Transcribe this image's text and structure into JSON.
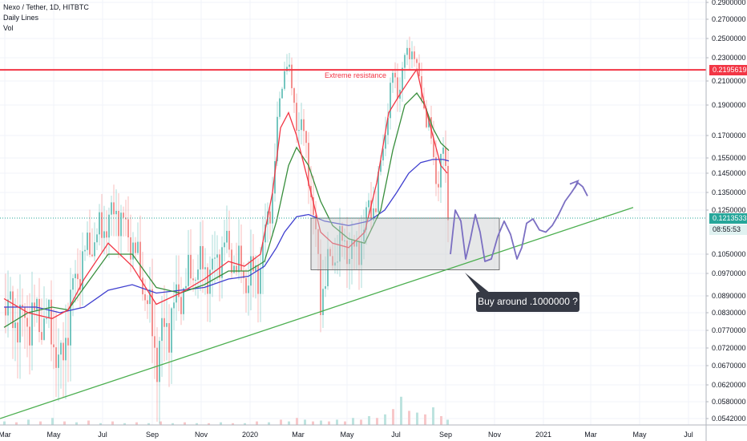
{
  "legend": {
    "title": "Nexo / Tether, 1D, HITBTC",
    "line2": "Daily Lines",
    "line3": "Vol"
  },
  "annotations": {
    "resistance_label": "Extreme resistance",
    "callout_text": "Buy around .1000000 ?"
  },
  "price_tags": {
    "resistance": "0.2195619",
    "current": "0.1213533",
    "countdown": "08:55:53"
  },
  "colors": {
    "resistance": "#f23645",
    "trendline": "#4caf50",
    "ma_fast": "#f23645",
    "ma_mid": "#388e3c",
    "ma_slow": "#3f3fcf",
    "path": "#7b6fc2",
    "current_tag": "#26a69a",
    "zone_fill": "#c8c9cd",
    "grid": "#f0f3fa",
    "axis_text": "#131722"
  },
  "chart_data": {
    "type": "candlestick",
    "symbol": "Nexo / Tether",
    "interval": "1D",
    "exchange": "HITBTC",
    "y_ticks": [
      "0.2900000",
      "0.2700000",
      "0.2500000",
      "0.2300000",
      "0.2100000",
      "0.1900000",
      "0.1700000",
      "0.1550000",
      "0.1450000",
      "0.1350000",
      "0.1250000",
      "0.1050000",
      "0.0970000",
      "0.0890000",
      "0.0830000",
      "0.0770000",
      "0.0720000",
      "0.0670000",
      "0.0620000",
      "0.0580000",
      "0.0542000"
    ],
    "y_tick_values": [
      0.29,
      0.27,
      0.25,
      0.23,
      0.21,
      0.19,
      0.17,
      0.155,
      0.145,
      0.135,
      0.125,
      0.105,
      0.097,
      0.089,
      0.083,
      0.077,
      0.072,
      0.067,
      0.062,
      0.058,
      0.0542
    ],
    "x_ticks": [
      "Mar",
      "May",
      "Jul",
      "Sep",
      "Nov",
      "2020",
      "Mar",
      "May",
      "Jul",
      "Sep",
      "Nov",
      "2021",
      "Mar",
      "May",
      "Jul"
    ],
    "x_tick_days": [
      0,
      61,
      122,
      184,
      245,
      306,
      366,
      427,
      488,
      550,
      611,
      672,
      731,
      792,
      853
    ],
    "price_path": {
      "days": [
        0,
        20,
        40,
        60,
        70,
        85,
        100,
        120,
        140,
        160,
        175,
        190,
        205,
        220,
        240,
        260,
        275,
        290,
        305,
        320,
        335,
        345,
        352,
        365,
        375,
        385,
        395,
        405,
        420,
        440,
        455,
        465,
        475,
        485,
        492,
        500,
        510,
        520,
        530,
        540,
        548,
        555
      ],
      "values": [
        0.085,
        0.08,
        0.082,
        0.078,
        0.064,
        0.09,
        0.105,
        0.115,
        0.125,
        0.11,
        0.092,
        0.07,
        0.08,
        0.09,
        0.1,
        0.098,
        0.11,
        0.1,
        0.095,
        0.1,
        0.135,
        0.2,
        0.23,
        0.18,
        0.17,
        0.125,
        0.09,
        0.1,
        0.11,
        0.105,
        0.125,
        0.13,
        0.17,
        0.215,
        0.2,
        0.23,
        0.24,
        0.2,
        0.175,
        0.14,
        0.16,
        0.121
      ]
    },
    "ma_fast": {
      "days": [
        0,
        30,
        60,
        80,
        100,
        130,
        160,
        190,
        220,
        250,
        280,
        300,
        320,
        335,
        345,
        355,
        365,
        380,
        395,
        410,
        430,
        450,
        465,
        480,
        495,
        505,
        515,
        525,
        535,
        545,
        553
      ],
      "values": [
        0.088,
        0.083,
        0.081,
        0.084,
        0.095,
        0.11,
        0.1,
        0.086,
        0.09,
        0.095,
        0.102,
        0.1,
        0.105,
        0.135,
        0.175,
        0.185,
        0.17,
        0.14,
        0.115,
        0.11,
        0.108,
        0.115,
        0.14,
        0.185,
        0.2,
        0.21,
        0.22,
        0.19,
        0.17,
        0.15,
        0.145
      ]
    },
    "ma_mid": {
      "days": [
        0,
        30,
        60,
        80,
        100,
        130,
        160,
        190,
        220,
        250,
        280,
        305,
        325,
        340,
        355,
        365,
        380,
        395,
        410,
        430,
        450,
        470,
        485,
        500,
        515,
        525,
        535,
        545,
        555
      ],
      "values": [
        0.078,
        0.083,
        0.085,
        0.084,
        0.092,
        0.105,
        0.105,
        0.092,
        0.09,
        0.093,
        0.098,
        0.098,
        0.102,
        0.12,
        0.15,
        0.162,
        0.15,
        0.13,
        0.118,
        0.112,
        0.11,
        0.125,
        0.16,
        0.19,
        0.2,
        0.19,
        0.175,
        0.165,
        0.16
      ]
    },
    "ma_slow": {
      "days": [
        0,
        40,
        70,
        100,
        130,
        160,
        190,
        220,
        250,
        280,
        305,
        325,
        340,
        350,
        365,
        380,
        400,
        430,
        455,
        475,
        490,
        505,
        520,
        535,
        548,
        555
      ],
      "values": [
        0.085,
        0.085,
        0.083,
        0.085,
        0.091,
        0.093,
        0.09,
        0.091,
        0.092,
        0.095,
        0.096,
        0.1,
        0.108,
        0.115,
        0.122,
        0.123,
        0.12,
        0.118,
        0.12,
        0.125,
        0.135,
        0.145,
        0.152,
        0.154,
        0.154,
        0.153
      ]
    },
    "volume": {
      "days": [
        0,
        15,
        30,
        45,
        60,
        75,
        90,
        105,
        120,
        135,
        150,
        165,
        180,
        195,
        210,
        225,
        240,
        255,
        270,
        285,
        300,
        315,
        330,
        345,
        355,
        365,
        375,
        385,
        395,
        405,
        415,
        425,
        435,
        445,
        455,
        465,
        475,
        485,
        495,
        505,
        515,
        525,
        535,
        545,
        553
      ],
      "values": [
        2,
        1.5,
        3,
        2,
        4,
        2,
        1.5,
        2.5,
        1,
        2,
        1,
        1.5,
        1,
        2,
        1,
        1.5,
        1,
        1,
        1.5,
        1,
        1,
        2,
        1.5,
        3,
        2,
        4,
        3,
        2,
        2.5,
        2,
        3,
        2,
        4,
        3,
        5,
        4,
        6,
        9,
        16,
        8,
        7,
        6,
        10,
        5,
        3
      ],
      "unit": "relative"
    },
    "resistance_level": 0.2195619,
    "current_price": 0.1213533,
    "buy_zone": {
      "from_day": 388,
      "to_day": 555,
      "top": 0.1213533,
      "bottom": 0.0985
    },
    "trendline": {
      "from_day": 0,
      "from_value": 0.0542,
      "to_day": 790,
      "to_value": 0.1265
    },
    "projected_path": {
      "days": [
        557,
        563,
        570,
        576,
        582,
        588,
        594,
        600,
        608,
        616,
        624,
        632,
        640,
        646,
        652,
        660,
        668,
        676,
        684,
        692,
        700,
        708,
        716,
        722,
        728
      ],
      "values": [
        0.105,
        0.125,
        0.12,
        0.103,
        0.112,
        0.123,
        0.115,
        0.102,
        0.103,
        0.113,
        0.12,
        0.114,
        0.103,
        0.108,
        0.119,
        0.121,
        0.116,
        0.115,
        0.118,
        0.123,
        0.13,
        0.135,
        0.14,
        0.138,
        0.133
      ]
    },
    "projected_arrow_tip": {
      "day": 716,
      "value": 0.141
    }
  }
}
